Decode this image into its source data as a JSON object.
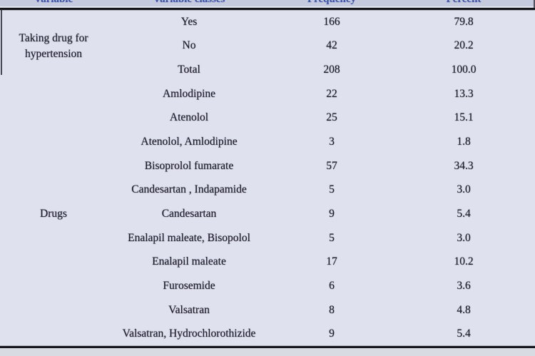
{
  "colors": {
    "header_bg": "#c5cade",
    "header_text": "#4056a8",
    "body_bg": "#dfe2ee",
    "text": "#1d1d30",
    "rule": "#15151d",
    "footer_bg": "#d9dbe3"
  },
  "table": {
    "header": {
      "variable": "Variable",
      "variable_classes": "Variable classes",
      "frequency": "Frequency",
      "percent": "Percent"
    },
    "row_groups": [
      {
        "label": "Taking drug for hypertension"
      },
      {
        "label": "Drugs"
      }
    ],
    "rows": [
      [
        "Yes",
        "166",
        "79.8"
      ],
      [
        "No",
        "42",
        "20.2"
      ],
      [
        "Total",
        "208",
        "100.0"
      ],
      [
        "Amlodipine",
        "22",
        "13.3"
      ],
      [
        "Atenolol",
        "25",
        "15.1"
      ],
      [
        "Atenolol, Amlodipine",
        "3",
        "1.8"
      ],
      [
        "Bisoprolol fumarate",
        "57",
        "34.3"
      ],
      [
        "Candesartan , Indapamide",
        "5",
        "3.0"
      ],
      [
        "Candesartan",
        "9",
        "5.4"
      ],
      [
        "Enalapil maleate, Bisopolol",
        "5",
        "3.0"
      ],
      [
        "Enalapil maleate",
        "17",
        "10.2"
      ],
      [
        "Furosemide",
        "6",
        "3.6"
      ],
      [
        "Valsatran",
        "8",
        "4.8"
      ],
      [
        "Valsatran, Hydrochlorothizide",
        "9",
        "5.4"
      ]
    ]
  }
}
